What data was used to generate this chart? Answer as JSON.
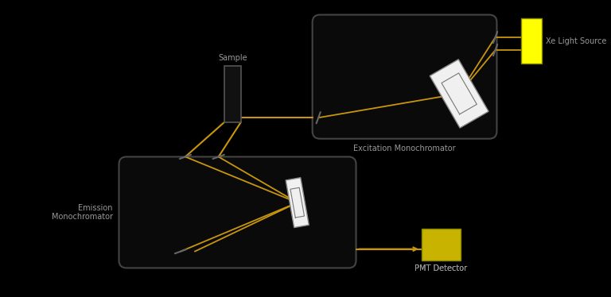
{
  "bg_color": "#000000",
  "line_color": "#C8960C",
  "box_bg": "#0a0a0a",
  "box_edge": "#444444",
  "white": "#FFFFFF",
  "gray": "#999999",
  "dark_gray": "#555555",
  "yellow_bright": "#FFFF00",
  "yellow_dim": "#C8B400",
  "labels": {
    "sample": "Sample",
    "xe_source": "Xe Light Source",
    "excitation_mono": "Excitation Monochromator",
    "emission_mono": "Emission\nMonochromator",
    "pmt": "PMT Detector"
  }
}
